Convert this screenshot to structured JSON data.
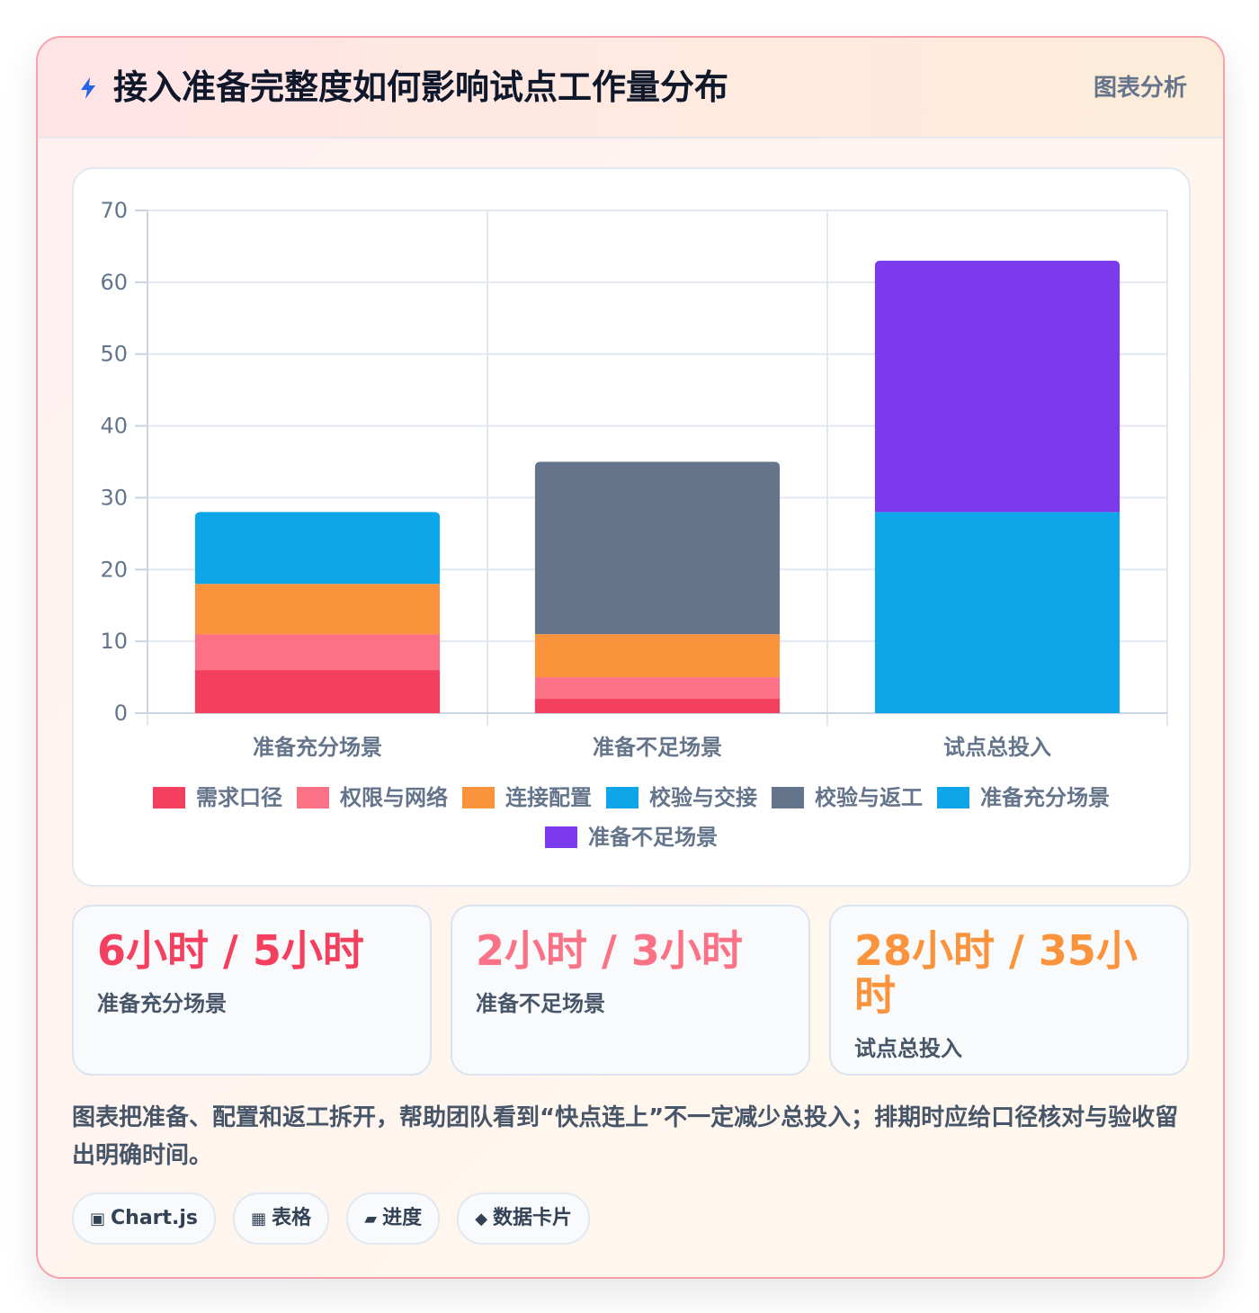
{
  "header": {
    "title": "接入准备完整度如何影响试点工作量分布",
    "tag": "图表分析",
    "icon": "lightning-icon"
  },
  "chart_data": {
    "type": "bar",
    "stacked": true,
    "categories": [
      "准备充分场景",
      "准备不足场景",
      "试点总投入"
    ],
    "ylim": [
      0,
      70
    ],
    "yticks": [
      0,
      10,
      20,
      30,
      40,
      50,
      60,
      70
    ],
    "grid": true,
    "legend_position": "bottom",
    "series": [
      {
        "name": "需求口径",
        "color": "#f43f5e",
        "values": [
          6,
          2,
          0
        ]
      },
      {
        "name": "权限与网络",
        "color": "#fb7185",
        "values": [
          5,
          3,
          0
        ]
      },
      {
        "name": "连接配置",
        "color": "#fb923c",
        "values": [
          7,
          6,
          0
        ]
      },
      {
        "name": "校验与交接",
        "color": "#0ea5e9",
        "values": [
          10,
          0,
          0
        ]
      },
      {
        "name": "校验与返工",
        "color": "#64748b",
        "values": [
          0,
          24,
          0
        ]
      },
      {
        "name": "准备充分场景",
        "color": "#0ea5e9",
        "values": [
          0,
          0,
          28
        ]
      },
      {
        "name": "准备不足场景",
        "color": "#7c3aed",
        "values": [
          0,
          0,
          35
        ]
      }
    ]
  },
  "stats": [
    {
      "value": "6小时 / 5小时",
      "label": "准备充分场景",
      "color": "#f43f5e"
    },
    {
      "value": "2小时 / 3小时",
      "label": "准备不足场景",
      "color": "#fb7185"
    },
    {
      "value": "28小时 / 35小时",
      "label": "试点总投入",
      "color": "#fb923c"
    }
  ],
  "note": "图表把准备、配置和返工拆开，帮助团队看到“快点连上”不一定减少总投入；排期时应给口径核对与验收留出明确时间。",
  "chips": [
    {
      "icon": "▣",
      "label": "Chart.js",
      "icon_name": "chart-icon"
    },
    {
      "icon": "▦",
      "label": "表格",
      "icon_name": "table-icon"
    },
    {
      "icon": "▰",
      "label": "进度",
      "icon_name": "progress-icon"
    },
    {
      "icon": "◆",
      "label": "数据卡片",
      "icon_name": "card-icon"
    }
  ]
}
